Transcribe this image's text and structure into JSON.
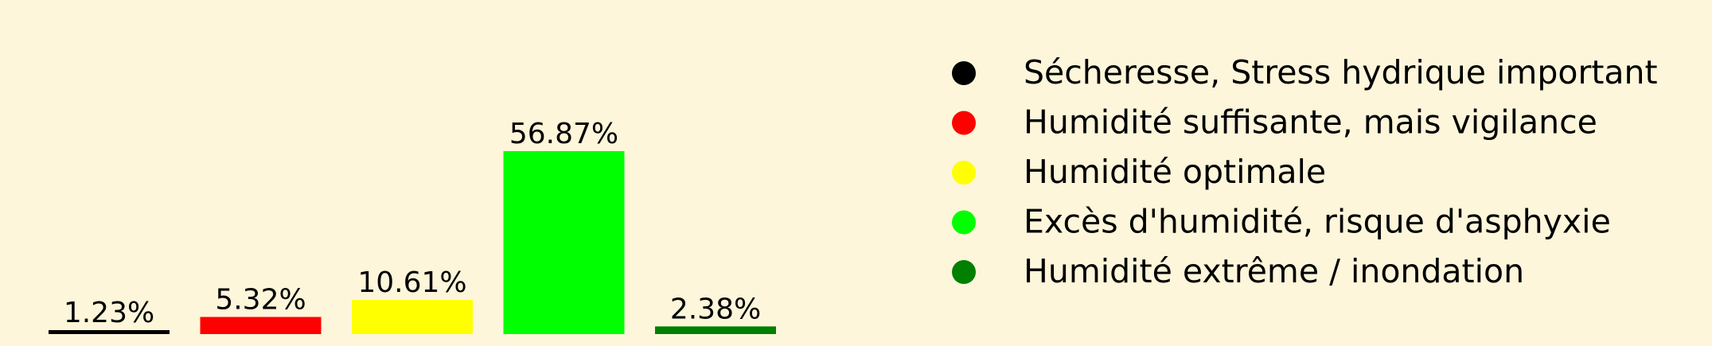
{
  "chart_data": {
    "type": "bar",
    "title": "",
    "xlabel": "",
    "ylabel": "",
    "categories": [
      "Sécheresse, Stress hydrique important",
      "Humidité suffisante, mais vigilance",
      "Humidité optimale",
      "Excès d'humidité, risque d'asphyxie",
      "Humidité extrême / inondation"
    ],
    "values": [
      1.23,
      5.32,
      10.61,
      56.87,
      2.38
    ],
    "value_labels": [
      "1.23%",
      "5.32%",
      "10.61%",
      "56.87%",
      "2.38%"
    ],
    "unit": "%",
    "colors": [
      "#000000",
      "#ff0000",
      "#ffff00",
      "#00ff00",
      "#008000"
    ],
    "ylim": [
      0,
      56.87
    ],
    "axes_visible": false,
    "grid": false,
    "legend": {
      "placement": "right",
      "entries": [
        {
          "label": "Sécheresse, Stress hydrique important",
          "color": "#000000"
        },
        {
          "label": "Humidité suffisante, mais vigilance",
          "color": "#ff0000"
        },
        {
          "label": "Humidité optimale",
          "color": "#ffff00"
        },
        {
          "label": "Excès d'humidité, risque d'asphyxie",
          "color": "#00ff00"
        },
        {
          "label": "Humidité extrême / inondation",
          "color": "#008000"
        }
      ]
    },
    "background_color": "#fdf6da"
  }
}
